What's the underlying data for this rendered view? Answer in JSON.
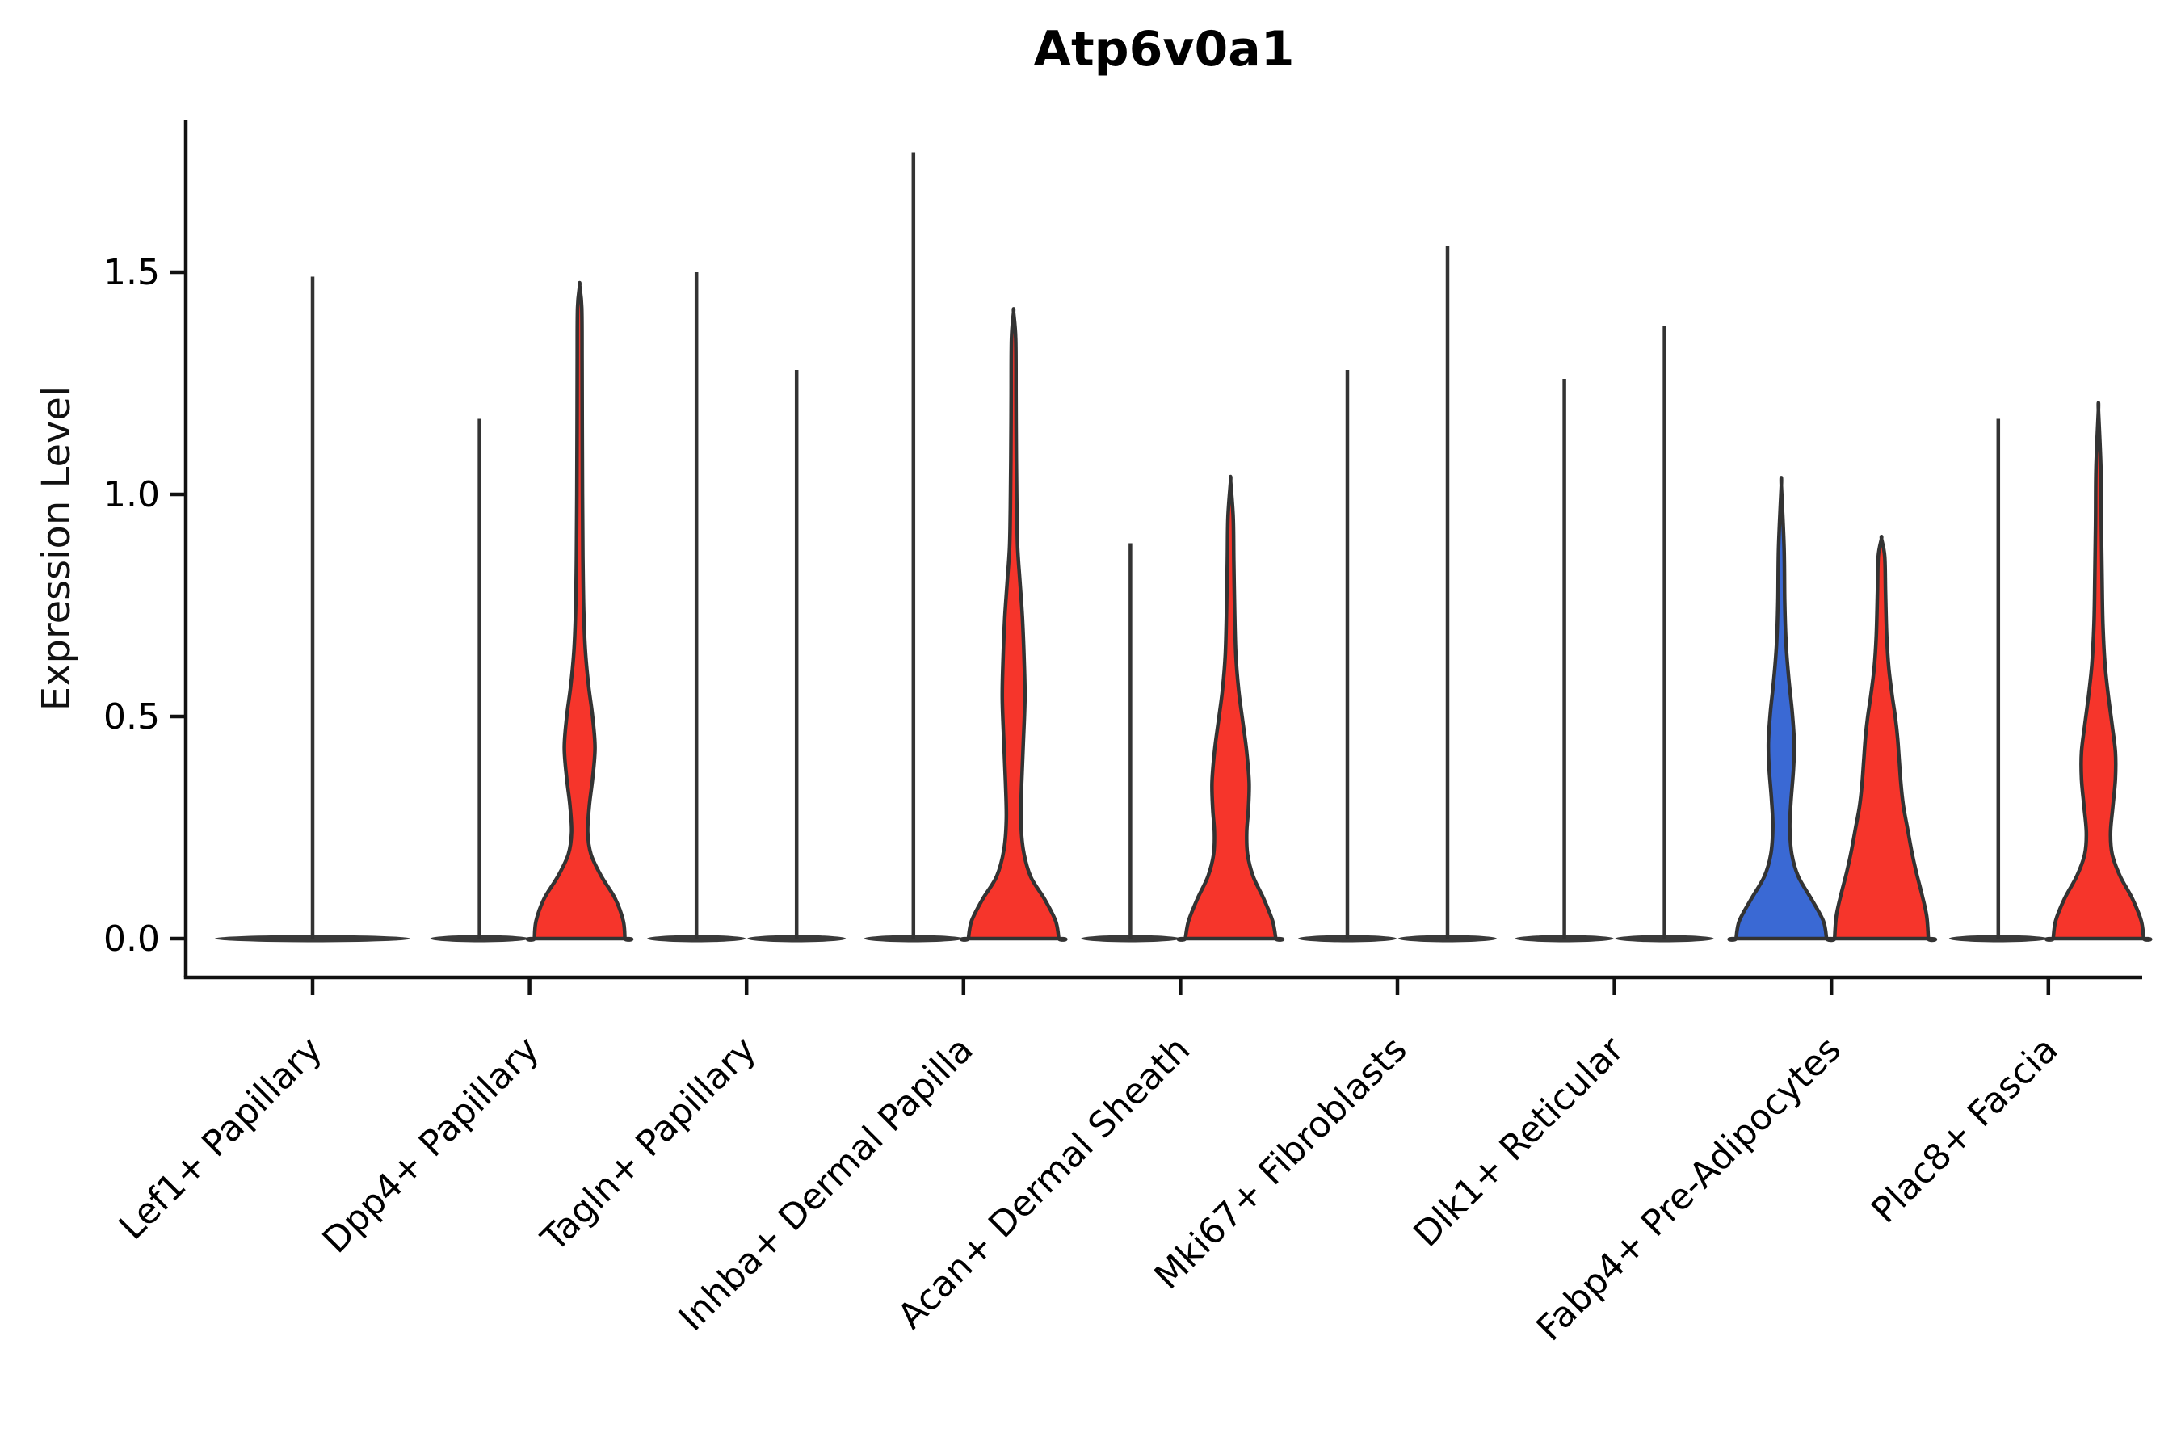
{
  "title": "Atp6v0a1",
  "ylabel": "Expression Level",
  "colors": {
    "red": "#f6352b",
    "blue": "#3a69d4",
    "line": "#333333",
    "axis": "#111111",
    "lens": "#3a3a3a",
    "text": "#000000"
  },
  "chart_data": {
    "type": "violin",
    "title": "Atp6v0a1",
    "xlabel": "",
    "ylabel": "Expression Level",
    "ylim": [
      -0.09,
      1.85
    ],
    "grid": false,
    "legend": "none",
    "y_ticks": [
      {
        "label": "0.0",
        "value": 0.0
      },
      {
        "label": "0.5",
        "value": 0.5
      },
      {
        "label": "1.0",
        "value": 1.0
      },
      {
        "label": "1.5",
        "value": 1.5
      }
    ],
    "categories": [
      {
        "label": "Lef1+ Papillary",
        "violins": [
          {
            "group": "full",
            "style": "spike",
            "fill": "none",
            "max": 1.49
          }
        ]
      },
      {
        "label": "Dpp4+ Papillary",
        "violins": [
          {
            "group": "left",
            "style": "spike",
            "fill": "none",
            "max": 1.17
          },
          {
            "group": "right",
            "style": "shaped",
            "fill": "red",
            "max": 1.47,
            "profile": [
              [
                0,
                56
              ],
              [
                0.04,
                54
              ],
              [
                0.09,
                44
              ],
              [
                0.14,
                27
              ],
              [
                0.19,
                14
              ],
              [
                0.24,
                10
              ],
              [
                0.3,
                12
              ],
              [
                0.36,
                16
              ],
              [
                0.43,
                19
              ],
              [
                0.5,
                16
              ],
              [
                0.57,
                11
              ],
              [
                0.65,
                7
              ],
              [
                0.74,
                5
              ],
              [
                0.86,
                4
              ],
              [
                1.0,
                3.5
              ],
              [
                1.15,
                3.2
              ],
              [
                1.3,
                3
              ],
              [
                1.42,
                2.6
              ],
              [
                1.47,
                0
              ]
            ]
          }
        ]
      },
      {
        "label": "Tagln+ Papillary",
        "violins": [
          {
            "group": "left",
            "style": "spike",
            "fill": "none",
            "max": 1.5
          },
          {
            "group": "right",
            "style": "spike",
            "fill": "none",
            "max": 1.28
          }
        ]
      },
      {
        "label": "Inhba+ Dermal Papilla",
        "violins": [
          {
            "group": "left",
            "style": "spike",
            "fill": "none",
            "max": 1.77
          },
          {
            "group": "right",
            "style": "shaped",
            "fill": "red",
            "max": 1.41,
            "profile": [
              [
                0,
                56
              ],
              [
                0.04,
                52
              ],
              [
                0.09,
                38
              ],
              [
                0.14,
                21
              ],
              [
                0.2,
                12
              ],
              [
                0.27,
                9
              ],
              [
                0.35,
                10
              ],
              [
                0.44,
                12
              ],
              [
                0.54,
                14
              ],
              [
                0.63,
                13
              ],
              [
                0.72,
                11
              ],
              [
                0.8,
                8
              ],
              [
                0.88,
                5
              ],
              [
                0.97,
                4
              ],
              [
                1.08,
                3.4
              ],
              [
                1.22,
                3
              ],
              [
                1.35,
                2.6
              ],
              [
                1.41,
                0
              ]
            ]
          }
        ]
      },
      {
        "label": "Acan+ Dermal Sheath",
        "violins": [
          {
            "group": "left",
            "style": "spike",
            "fill": "none",
            "max": 0.89
          },
          {
            "group": "right",
            "style": "shaped",
            "fill": "red",
            "max": 1.03,
            "profile": [
              [
                0,
                56
              ],
              [
                0.04,
                52
              ],
              [
                0.09,
                41
              ],
              [
                0.14,
                28
              ],
              [
                0.19,
                21
              ],
              [
                0.24,
                20
              ],
              [
                0.29,
                22
              ],
              [
                0.35,
                23
              ],
              [
                0.42,
                20
              ],
              [
                0.49,
                15
              ],
              [
                0.56,
                10
              ],
              [
                0.64,
                6.5
              ],
              [
                0.74,
                5
              ],
              [
                0.85,
                4
              ],
              [
                0.95,
                3.2
              ],
              [
                1.03,
                0
              ]
            ]
          }
        ]
      },
      {
        "label": "Mki67+ Fibroblasts",
        "violins": [
          {
            "group": "left",
            "style": "spike",
            "fill": "none",
            "max": 1.28
          },
          {
            "group": "right",
            "style": "spike",
            "fill": "none",
            "max": 1.56
          }
        ]
      },
      {
        "label": "Dlk1+ Reticular",
        "violins": [
          {
            "group": "left",
            "style": "spike",
            "fill": "none",
            "max": 1.26
          },
          {
            "group": "right",
            "style": "spike",
            "fill": "none",
            "max": 1.38
          }
        ]
      },
      {
        "label": "Fabp4+ Pre-Adipocytes",
        "violins": [
          {
            "group": "left",
            "style": "shaped",
            "fill": "blue",
            "max": 1.02,
            "profile": [
              [
                0,
                56
              ],
              [
                0.04,
                52
              ],
              [
                0.09,
                37
              ],
              [
                0.14,
                21
              ],
              [
                0.19,
                13
              ],
              [
                0.25,
                10.5
              ],
              [
                0.31,
                12
              ],
              [
                0.38,
                15
              ],
              [
                0.44,
                16
              ],
              [
                0.51,
                13.5
              ],
              [
                0.58,
                9.5
              ],
              [
                0.66,
                6
              ],
              [
                0.76,
                4.2
              ],
              [
                0.88,
                3.4
              ],
              [
                1.02,
                0
              ]
            ]
          },
          {
            "group": "right",
            "style": "shaped",
            "fill": "red",
            "max": 0.9,
            "profile": [
              [
                0,
                58
              ],
              [
                0.05,
                56
              ],
              [
                0.1,
                50
              ],
              [
                0.15,
                43
              ],
              [
                0.2,
                37
              ],
              [
                0.25,
                32
              ],
              [
                0.3,
                27
              ],
              [
                0.35,
                24
              ],
              [
                0.4,
                22
              ],
              [
                0.45,
                20
              ],
              [
                0.5,
                17
              ],
              [
                0.55,
                13
              ],
              [
                0.61,
                9
              ],
              [
                0.68,
                6.5
              ],
              [
                0.78,
                5
              ],
              [
                0.86,
                4
              ],
              [
                0.9,
                0
              ]
            ]
          }
        ]
      },
      {
        "label": "Plac8+ Fascia",
        "violins": [
          {
            "group": "left",
            "style": "spike",
            "fill": "none",
            "max": 1.17
          },
          {
            "group": "right",
            "style": "shaped",
            "fill": "red",
            "max": 1.19,
            "profile": [
              [
                0,
                56
              ],
              [
                0.04,
                53
              ],
              [
                0.09,
                42
              ],
              [
                0.14,
                27
              ],
              [
                0.19,
                17
              ],
              [
                0.24,
                15
              ],
              [
                0.3,
                18
              ],
              [
                0.36,
                21
              ],
              [
                0.42,
                21
              ],
              [
                0.48,
                17
              ],
              [
                0.55,
                12
              ],
              [
                0.62,
                8
              ],
              [
                0.71,
                5.5
              ],
              [
                0.81,
                4.5
              ],
              [
                0.93,
                3.6
              ],
              [
                1.06,
                3
              ],
              [
                1.19,
                0
              ]
            ]
          }
        ]
      }
    ]
  }
}
